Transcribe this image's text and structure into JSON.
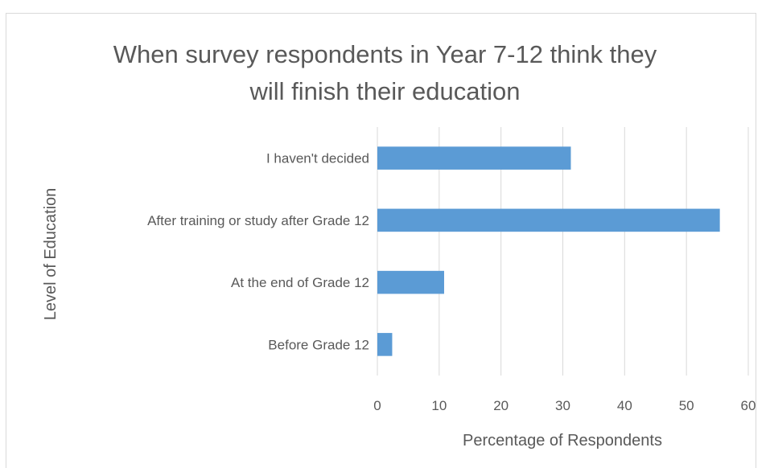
{
  "chart_data": {
    "type": "bar",
    "orientation": "horizontal",
    "title": "When survey respondents in Year 7-12 think they will finish their education",
    "title_lines": [
      "When survey respondents in Year 7-12 think they",
      "will finish their education"
    ],
    "xlabel": "Percentage of Respondents",
    "ylabel": "Level of Education",
    "categories": [
      "Before Grade 12",
      "At the end of Grade 12",
      "After training or study after Grade 12",
      "I haven't decided"
    ],
    "values": [
      2.4,
      10.8,
      55.4,
      31.3
    ],
    "xlim": [
      0,
      60
    ],
    "xticks": [
      0,
      10,
      20,
      30,
      40,
      50,
      60
    ],
    "grid": "vertical",
    "legend": "none",
    "bar_color": "#5b9bd5",
    "grid_color": "#d9d9d9"
  }
}
